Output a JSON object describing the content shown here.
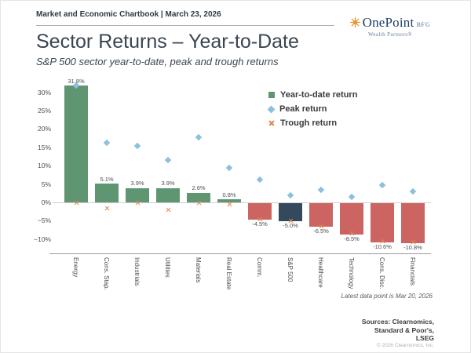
{
  "header": {
    "breadcrumb": "Market and Economic Chartbook | March 23, 2026"
  },
  "logo": {
    "brand": "OnePoint",
    "suffix": "BFG",
    "tagline": "Wealth Partners®",
    "icon": "sun-icon",
    "icon_color": "#E8962E"
  },
  "title": "Sector Returns – Year-to-Date",
  "subtitle": "S&P 500 sector year-to-date, peak and trough returns",
  "footnote": "Latest data point is Mar 20, 2026",
  "sources": [
    "Sources: Clearnomics,",
    "Standard & Poor's,",
    "LSEG"
  ],
  "copyright": "© 2026 Clearnomics, Inc.",
  "chart_data": {
    "type": "bar",
    "title": "Sector Returns – Year-to-Date",
    "categories": [
      "Energy",
      "Cons. Stap.",
      "Industrials",
      "Utilities",
      "Materials",
      "Real Estate",
      "Comm.",
      "S&P 500",
      "Healthcare",
      "Technology",
      "Cons. Disc.",
      "Financials"
    ],
    "series": [
      {
        "name": "Year-to-date return",
        "type": "bar",
        "values": [
          31.8,
          5.1,
          3.9,
          3.9,
          2.6,
          0.8,
          -4.5,
          -5.0,
          -6.5,
          -8.5,
          -10.6,
          -10.8
        ]
      },
      {
        "name": "Peak return",
        "type": "scatter",
        "marker": "diamond",
        "values": [
          31.8,
          16.2,
          15.4,
          11.5,
          17.7,
          9.5,
          6.3,
          2.0,
          3.4,
          1.6,
          4.8,
          2.9
        ]
      },
      {
        "name": "Trough return",
        "type": "scatter",
        "marker": "x",
        "values": [
          -0.2,
          -1.5,
          -0.2,
          -2.0,
          -0.2,
          -0.6,
          -4.6,
          -5.1,
          -6.5,
          -8.5,
          -10.6,
          -10.8
        ]
      }
    ],
    "value_labels": [
      "31.8%",
      "5.1%",
      "3.9%",
      "3.9%",
      "2.6%",
      "0.8%",
      "-4.5%",
      "-5.0%",
      "-6.5%",
      "-8.5%",
      "-10.6%",
      "-10.8%"
    ],
    "ytick_labels": [
      "30%",
      "25%",
      "20%",
      "15%",
      "10%",
      "5%",
      "0%",
      "−5%",
      "−10%"
    ],
    "ytick_values": [
      30,
      25,
      20,
      15,
      10,
      5,
      0,
      -5,
      -10
    ],
    "ylim": [
      -13,
      33
    ],
    "grid": "zero-line-only",
    "legend_position": "top-right-inside",
    "highlight_category": "S&P 500",
    "colors": {
      "ytd_positive": "#5F9671",
      "ytd_negative": "#CC6561",
      "sp500_highlight": "#35495C",
      "peak": "#8CC0DE",
      "trough": "#E08449",
      "title_text": "#3A4551"
    }
  }
}
